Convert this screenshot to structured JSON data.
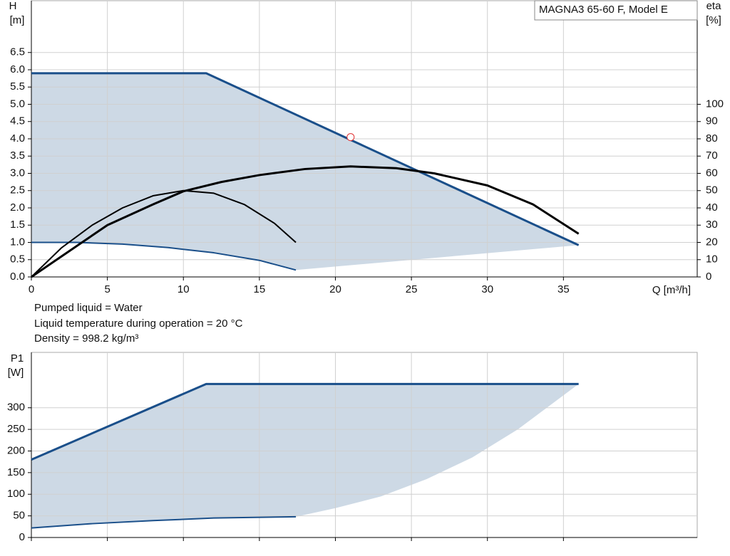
{
  "chart_data": [
    {
      "type": "line",
      "model_label": "MAGNA3 65-60 F, Model E",
      "y_label": "H",
      "y_unit": "[m]",
      "y2_label": "eta",
      "y2_unit": "[%]",
      "x_label": "Q [m³/h]",
      "annotations": [
        "Pumped liquid = Water",
        "Liquid temperature during operation = 20 °C",
        "Density = 998.2 kg/m³"
      ],
      "xlim": [
        0,
        43.8
      ],
      "xticks": [
        0,
        5,
        10,
        15,
        20,
        25,
        30,
        35
      ],
      "ylim": [
        0,
        8
      ],
      "yticks": [
        {
          "value": 0,
          "label": "0.0"
        },
        0.5,
        {
          "value": 1,
          "label": "1.0"
        },
        1.5,
        {
          "value": 2,
          "label": "2.0"
        },
        2.5,
        {
          "value": 3,
          "label": "3.0"
        },
        3.5,
        {
          "value": 4,
          "label": "4.0"
        },
        4.5,
        {
          "value": 5,
          "label": "5.0"
        },
        5.5,
        {
          "value": 6,
          "label": "6.0"
        },
        6.5
      ],
      "y2lim": [
        0,
        160
      ],
      "y2ticks": [
        0,
        10,
        20,
        30,
        40,
        50,
        60,
        70,
        80,
        90,
        100
      ],
      "grid": true,
      "fill_color": "#cdd9e5",
      "series": [
        {
          "x": [
            0,
            11.5,
            36
          ],
          "values": [
            5.9,
            5.9,
            0.92
          ],
          "color": "#1a4f8a",
          "width": 3,
          "range": "upper"
        },
        {
          "x": [
            0,
            3,
            6,
            9,
            12,
            15,
            17.4
          ],
          "values": [
            1.0,
            1.0,
            0.95,
            0.85,
            0.7,
            0.48,
            0.2
          ],
          "color": "#1a4f8a",
          "width": 2,
          "range": "lower"
        },
        {
          "x": [
            0,
            2,
            5,
            8,
            10,
            12.5,
            15,
            18,
            21,
            24,
            26.5,
            30,
            33,
            36
          ],
          "values": [
            0,
            12,
            30,
            42,
            49.6,
            55,
            59,
            62.5,
            64,
            63,
            60,
            53,
            42,
            25
          ],
          "color": "#000000",
          "width": 3,
          "axis": "y2"
        },
        {
          "x": [
            0,
            2,
            4,
            6,
            8,
            10,
            12,
            14,
            16,
            17.4
          ],
          "values": [
            0,
            17,
            30,
            40,
            47,
            50,
            48.5,
            42,
            31,
            20
          ],
          "color": "#000000",
          "width": 2,
          "axis": "y2"
        }
      ],
      "duty_point": {
        "x": 21,
        "value": 4.05,
        "color": "#e03030"
      }
    },
    {
      "type": "line",
      "y_label": "P1",
      "y_unit": "[W]",
      "xlim": [
        0,
        43.8
      ],
      "xticks": [
        0,
        5,
        10,
        15,
        20,
        25,
        30,
        35
      ],
      "ylim": [
        0,
        428
      ],
      "yticks": [
        0,
        50,
        100,
        150,
        200,
        250,
        300
      ],
      "grid": true,
      "fill_color": "#cdd9e5",
      "series": [
        {
          "x": [
            0,
            11.5,
            36
          ],
          "values": [
            180,
            355,
            355
          ],
          "color": "#1a4f8a",
          "width": 3,
          "range": "upper"
        },
        {
          "x": [
            36,
            32,
            29,
            26,
            23,
            20,
            17.4
          ],
          "values": [
            355,
            250,
            185,
            135,
            95,
            68,
            48
          ],
          "color": "#1a4f8a",
          "width": 0,
          "range": "edge"
        },
        {
          "x": [
            0,
            4,
            8,
            12,
            17.4
          ],
          "values": [
            22,
            32,
            39,
            45,
            48
          ],
          "color": "#1a4f8a",
          "width": 2,
          "range": "lower"
        }
      ]
    }
  ]
}
